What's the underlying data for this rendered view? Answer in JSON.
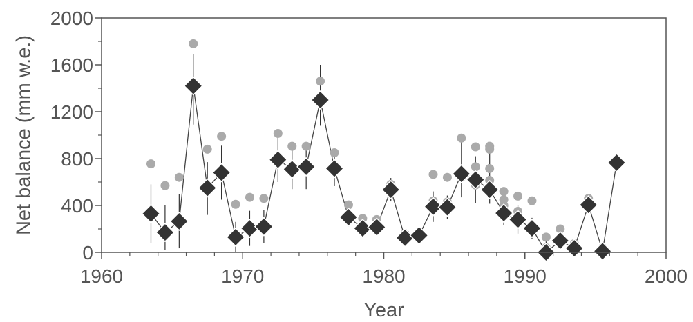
{
  "chart_data": {
    "type": "scatter",
    "title": "",
    "xlabel": "Year",
    "ylabel": "Net balance (mm w.e.)",
    "xlim": [
      1960,
      2000
    ],
    "ylim": [
      0,
      2000
    ],
    "x_ticks": [
      1960,
      1970,
      1980,
      1990,
      2000
    ],
    "y_ticks": [
      0,
      400,
      800,
      1200,
      1600,
      2000
    ],
    "grid": false,
    "legend": null,
    "colors": {
      "primary": "#333333",
      "secondary": "#aaaaaa",
      "axis": "#555555"
    },
    "series": [
      {
        "marker": "diamond",
        "connected": true,
        "points": [
          {
            "x": 1963.5,
            "y": 330,
            "err_lo": 250,
            "err_hi": 250
          },
          {
            "x": 1964.5,
            "y": 170,
            "err_lo": 150,
            "err_hi": 230
          },
          {
            "x": 1965.5,
            "y": 265,
            "err_lo": 230,
            "err_hi": 230
          },
          {
            "x": 1966.5,
            "y": 1420,
            "err_lo": 330,
            "err_hi": 270
          },
          {
            "x": 1967.5,
            "y": 550,
            "err_lo": 230,
            "err_hi": 220
          },
          {
            "x": 1968.5,
            "y": 680,
            "err_lo": 230,
            "err_hi": 230
          },
          {
            "x": 1969.5,
            "y": 130,
            "err_lo": 130,
            "err_hi": 130
          },
          {
            "x": 1970.5,
            "y": 205,
            "err_lo": 150,
            "err_hi": 150
          },
          {
            "x": 1971.5,
            "y": 220,
            "err_lo": 140,
            "err_hi": 140
          },
          {
            "x": 1972.5,
            "y": 790,
            "err_lo": 190,
            "err_hi": 190
          },
          {
            "x": 1973.5,
            "y": 710,
            "err_lo": 170,
            "err_hi": 200
          },
          {
            "x": 1974.5,
            "y": 730,
            "err_lo": 190,
            "err_hi": 190
          },
          {
            "x": 1975.5,
            "y": 1300,
            "err_lo": 220,
            "err_hi": 300
          },
          {
            "x": 1976.5,
            "y": 715,
            "err_lo": 150,
            "err_hi": 150
          },
          {
            "x": 1977.5,
            "y": 300,
            "err_lo": 80,
            "err_hi": 80
          },
          {
            "x": 1978.5,
            "y": 205,
            "err_lo": 60,
            "err_hi": 60
          },
          {
            "x": 1979.5,
            "y": 215,
            "err_lo": 60,
            "err_hi": 60
          },
          {
            "x": 1980.5,
            "y": 535,
            "err_lo": 100,
            "err_hi": 100
          },
          {
            "x": 1981.5,
            "y": 125,
            "err_lo": 50,
            "err_hi": 50
          },
          {
            "x": 1982.5,
            "y": 145,
            "err_lo": 50,
            "err_hi": 50
          },
          {
            "x": 1983.5,
            "y": 390,
            "err_lo": 130,
            "err_hi": 130
          },
          {
            "x": 1984.5,
            "y": 385,
            "err_lo": 100,
            "err_hi": 100
          },
          {
            "x": 1985.5,
            "y": 670,
            "err_lo": 200,
            "err_hi": 330
          },
          {
            "x": 1986.5,
            "y": 620,
            "err_lo": 200,
            "err_hi": 200
          },
          {
            "x": 1987.5,
            "y": 535,
            "err_lo": 120,
            "err_hi": 380
          },
          {
            "x": 1988.5,
            "y": 335,
            "err_lo": 100,
            "err_hi": 190
          },
          {
            "x": 1989.5,
            "y": 280,
            "err_lo": 120,
            "err_hi": 120
          },
          {
            "x": 1990.5,
            "y": 205,
            "err_lo": 90,
            "err_hi": 90
          },
          {
            "x": 1991.5,
            "y": 0,
            "err_lo": 0,
            "err_hi": 120
          },
          {
            "x": 1992.5,
            "y": 100,
            "err_lo": 50,
            "err_hi": 50
          },
          {
            "x": 1993.5,
            "y": 35,
            "err_lo": 0,
            "err_hi": 0
          },
          {
            "x": 1994.5,
            "y": 405,
            "err_lo": 60,
            "err_hi": 60
          },
          {
            "x": 1995.5,
            "y": 10,
            "err_lo": 0,
            "err_hi": 0
          },
          {
            "x": 1996.5,
            "y": 765,
            "err_lo": 0,
            "err_hi": 0
          }
        ]
      },
      {
        "marker": "circle",
        "connected": false,
        "points": [
          {
            "x": 1963.5,
            "y": 755
          },
          {
            "x": 1964.5,
            "y": 570
          },
          {
            "x": 1965.5,
            "y": 640
          },
          {
            "x": 1966.5,
            "y": 1780
          },
          {
            "x": 1967.5,
            "y": 880
          },
          {
            "x": 1968.5,
            "y": 990
          },
          {
            "x": 1969.5,
            "y": 410
          },
          {
            "x": 1970.5,
            "y": 470
          },
          {
            "x": 1971.5,
            "y": 460
          },
          {
            "x": 1972.5,
            "y": 1015
          },
          {
            "x": 1973.5,
            "y": 905
          },
          {
            "x": 1974.5,
            "y": 905
          },
          {
            "x": 1975.5,
            "y": 1460
          },
          {
            "x": 1976.5,
            "y": 850
          },
          {
            "x": 1977.5,
            "y": 405
          },
          {
            "x": 1978.5,
            "y": 290
          },
          {
            "x": 1979.5,
            "y": 280
          },
          {
            "x": 1980.5,
            "y": 580
          },
          {
            "x": 1981.5,
            "y": 160
          },
          {
            "x": 1982.5,
            "y": 150
          },
          {
            "x": 1983.5,
            "y": 665
          },
          {
            "x": 1983.5,
            "y": 440
          },
          {
            "x": 1984.5,
            "y": 640
          },
          {
            "x": 1984.5,
            "y": 430
          },
          {
            "x": 1985.5,
            "y": 975
          },
          {
            "x": 1985.5,
            "y": 640
          },
          {
            "x": 1986.5,
            "y": 900
          },
          {
            "x": 1986.5,
            "y": 730
          },
          {
            "x": 1986.5,
            "y": 575
          },
          {
            "x": 1987.5,
            "y": 905
          },
          {
            "x": 1987.5,
            "y": 880
          },
          {
            "x": 1987.5,
            "y": 715
          },
          {
            "x": 1987.5,
            "y": 615
          },
          {
            "x": 1988.5,
            "y": 520
          },
          {
            "x": 1988.5,
            "y": 450
          },
          {
            "x": 1988.5,
            "y": 400
          },
          {
            "x": 1989.5,
            "y": 480
          },
          {
            "x": 1989.5,
            "y": 350
          },
          {
            "x": 1989.5,
            "y": 300
          },
          {
            "x": 1990.5,
            "y": 440
          },
          {
            "x": 1990.5,
            "y": 210
          },
          {
            "x": 1991.5,
            "y": 130
          },
          {
            "x": 1991.5,
            "y": 40
          },
          {
            "x": 1992.5,
            "y": 200
          },
          {
            "x": 1993.5,
            "y": 75
          },
          {
            "x": 1994.5,
            "y": 460
          },
          {
            "x": 1995.5,
            "y": 40
          },
          {
            "x": 1996.5,
            "y": 765
          }
        ]
      }
    ]
  }
}
